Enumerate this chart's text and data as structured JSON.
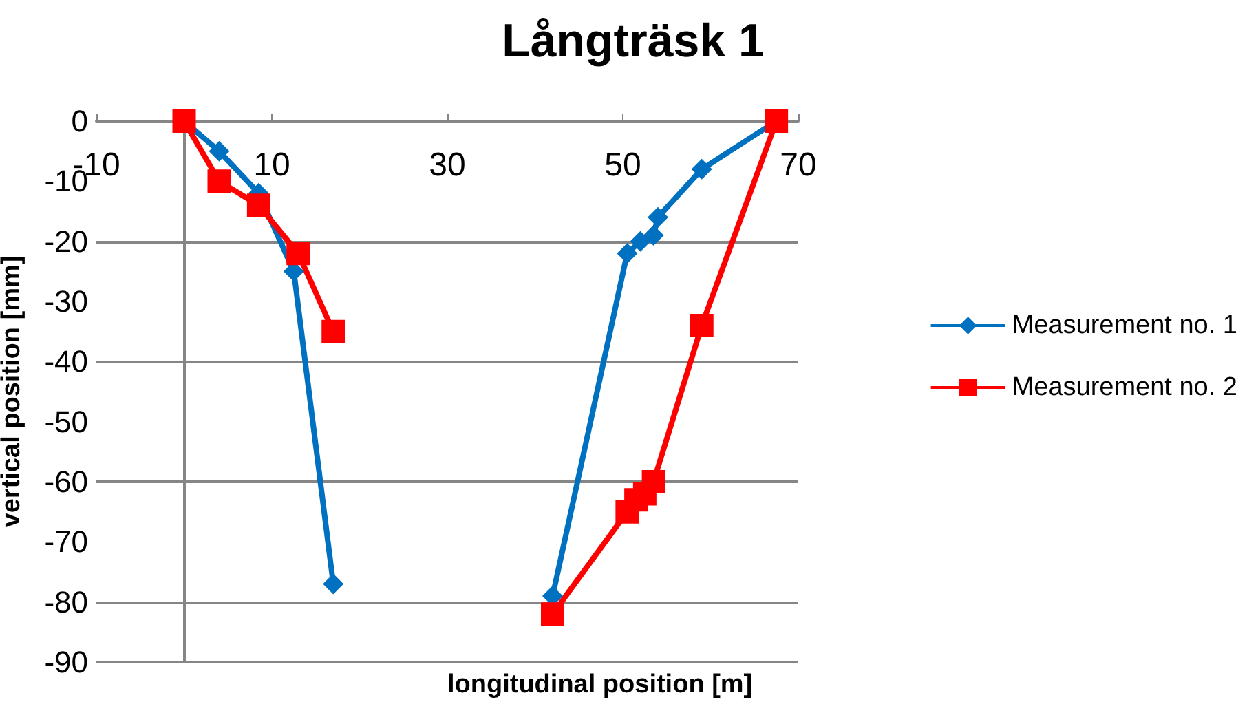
{
  "chart_data": {
    "type": "line",
    "title": "Långträsk 1",
    "xlabel": "longitudinal position [m]",
    "ylabel": "vertical position [mm]",
    "xlim": [
      -10,
      70
    ],
    "xticks": [
      -10,
      10,
      30,
      50,
      70
    ],
    "ylim": [
      -90,
      0
    ],
    "yticks": [
      0,
      -10,
      -20,
      -30,
      -40,
      -50,
      -60,
      -70,
      -80,
      -90
    ],
    "grid": "y",
    "legend": "right",
    "series": [
      {
        "name": "Measurement no. 1",
        "color": "#0070c0",
        "marker": "diamond",
        "x": [
          0,
          4,
          8.5,
          12.5,
          17,
          null,
          42,
          50.5,
          52,
          53.5,
          54,
          59,
          67.5
        ],
        "values": [
          0,
          -5,
          -12,
          -25,
          -77,
          null,
          -79,
          -22,
          -20,
          -19,
          -16,
          -8,
          0
        ]
      },
      {
        "name": "Measurement no. 2",
        "color": "#ff0000",
        "marker": "square",
        "x": [
          0,
          4,
          8.5,
          13,
          17,
          null,
          42,
          50.5,
          51.5,
          52.5,
          53.5,
          59,
          67.5
        ],
        "values": [
          0,
          -10,
          -14,
          -22,
          -35,
          null,
          -82,
          -65,
          -63,
          -62,
          -60,
          -34,
          0
        ]
      }
    ]
  }
}
